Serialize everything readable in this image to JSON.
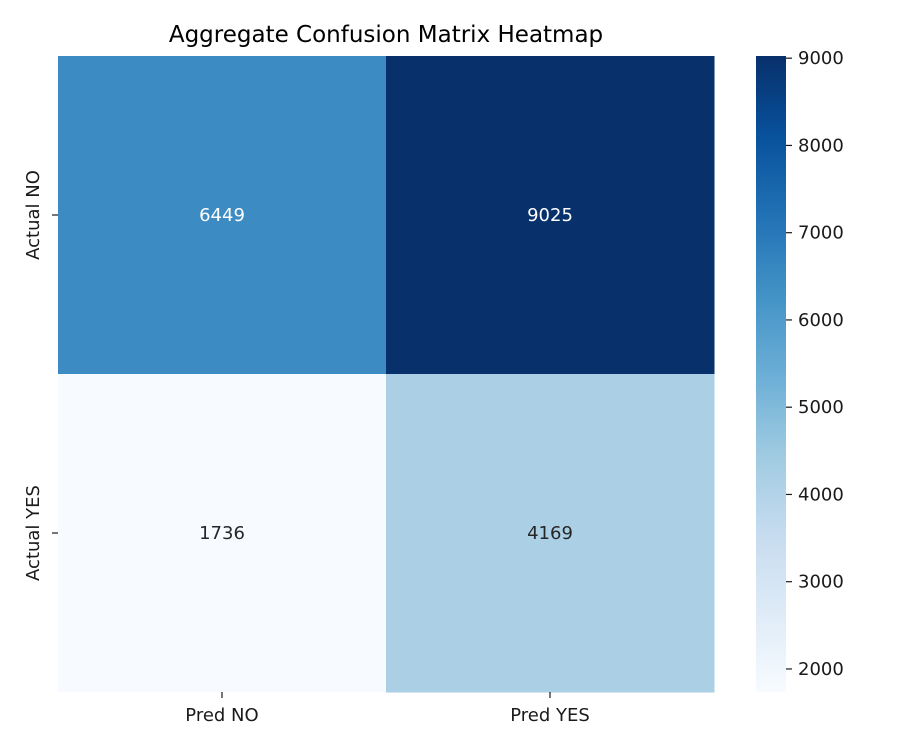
{
  "chart_data": {
    "type": "heatmap",
    "title": "Aggregate Confusion Matrix Heatmap",
    "xlabel": "",
    "ylabel": "",
    "x_categories": [
      "Pred NO",
      "Pred YES"
    ],
    "y_categories": [
      "Actual NO",
      "Actual YES"
    ],
    "values": [
      [
        6449,
        9025
      ],
      [
        1736,
        4169
      ]
    ],
    "colormap": "Blues",
    "colorbar": {
      "vmin": 1736,
      "vmax": 9025,
      "ticks": [
        2000,
        3000,
        4000,
        5000,
        6000,
        7000,
        8000,
        9000
      ],
      "tick_labels": [
        "2000",
        "3000",
        "4000",
        "5000",
        "6000",
        "7000",
        "8000",
        "9000"
      ]
    },
    "grid": false,
    "legend": "colorbar-right"
  }
}
